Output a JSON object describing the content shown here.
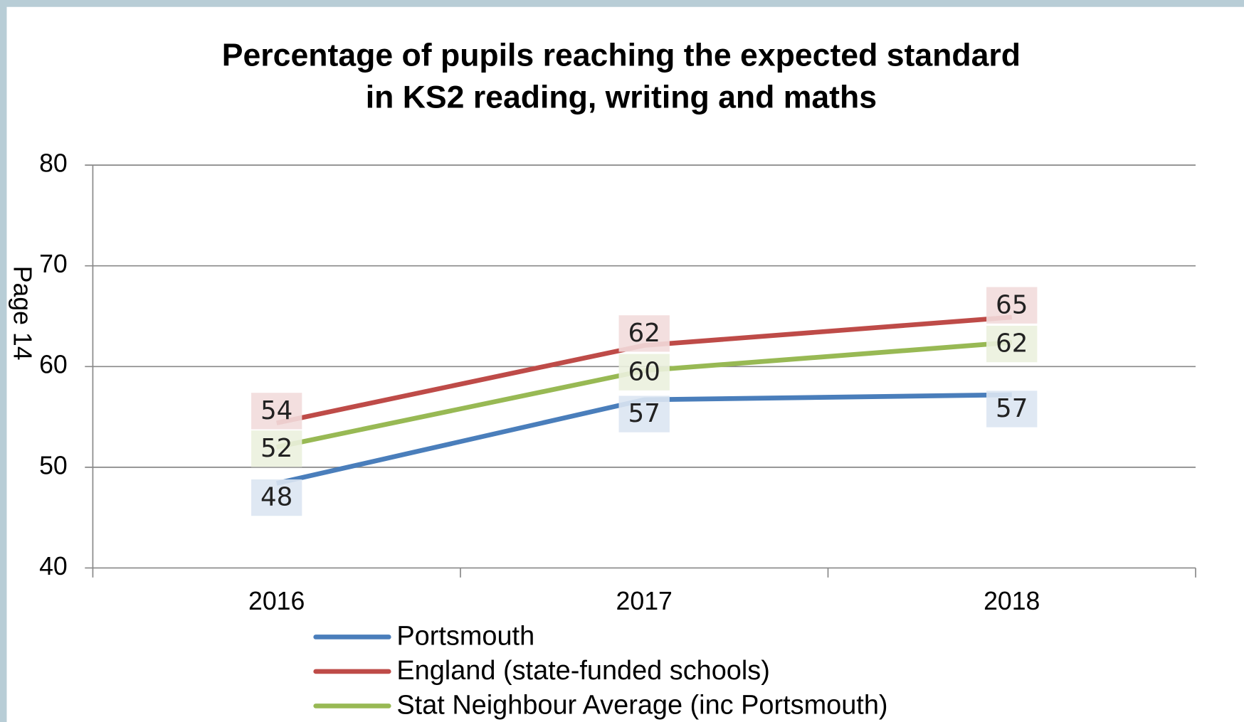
{
  "chart_data": {
    "type": "line",
    "title": [
      "Percentage of pupils reaching the expected standard",
      "in KS2 reading, writing  and maths"
    ],
    "categories": [
      "2016",
      "2017",
      "2018"
    ],
    "series": [
      {
        "name": "Portsmouth",
        "color": "#4a7ebb",
        "label_fill": "#dce6f2",
        "values": [
          48.4,
          56.7,
          57.2
        ],
        "value_labels": [
          "48",
          "57",
          "57"
        ]
      },
      {
        "name": "England (state-funded schools)",
        "color": "#be4b48",
        "label_fill": "#f2dcdb",
        "values": [
          54.4,
          62.1,
          64.9
        ],
        "value_labels": [
          "54",
          "62",
          "65"
        ]
      },
      {
        "name": "Stat Neighbour Average (inc Portsmouth)",
        "color": "#98b954",
        "label_fill": "#ebf1de",
        "values": [
          52.0,
          59.6,
          62.4
        ],
        "value_labels": [
          "52",
          "60",
          "62"
        ]
      }
    ],
    "ylim": [
      40,
      80
    ],
    "yticks": [
      40,
      50,
      60,
      70,
      80
    ],
    "grid": true
  },
  "page_label": "Page 14"
}
